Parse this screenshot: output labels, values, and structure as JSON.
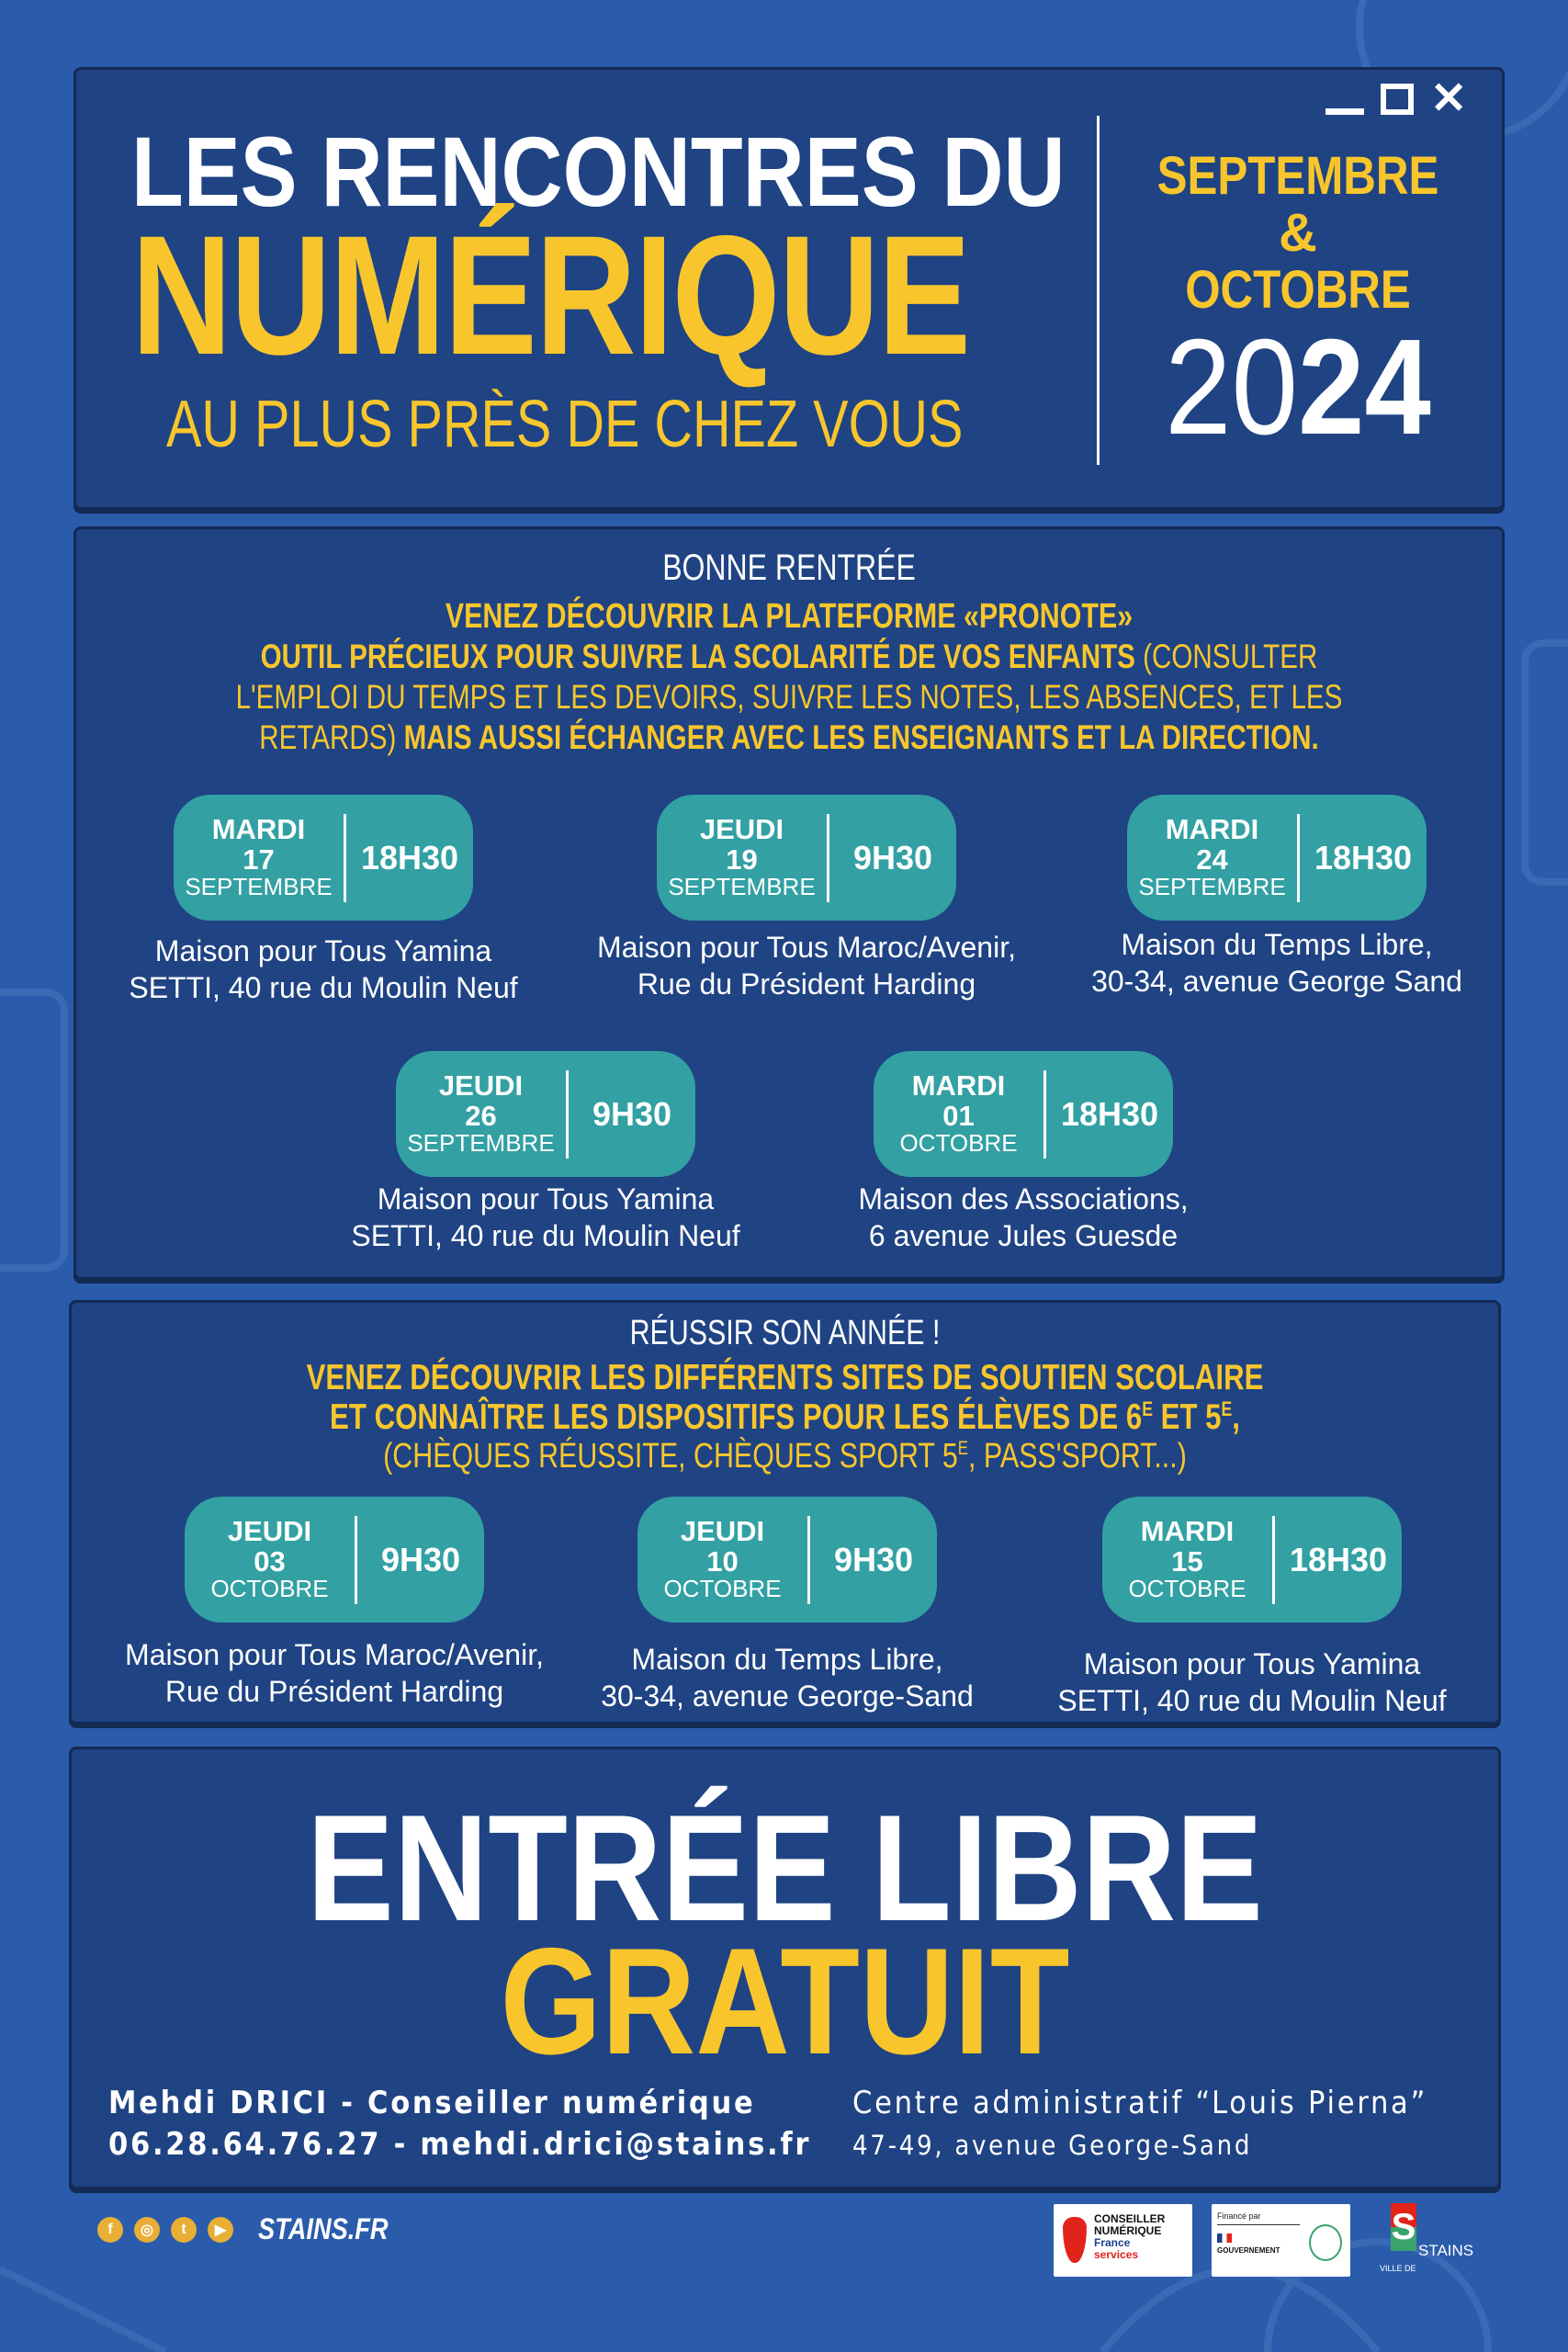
{
  "colors": {
    "background": "#2a5cab",
    "panel": "#1f4383",
    "accent_yellow": "#f8c62c",
    "pill_teal": "#33a0a3"
  },
  "header": {
    "line1": "LES RENCONTRES DU",
    "line2": "NUMÉRIQUE",
    "line3": "AU PLUS PRÈS DE CHEZ VOUS",
    "month1": "SEPTEMBRE",
    "amp": "&",
    "month2": "OCTOBRE",
    "year_a": "20",
    "year_b": "24",
    "window_controls": [
      "minimize-icon",
      "maximize-icon",
      "close-icon"
    ]
  },
  "section1": {
    "kicker": "BONNE RENTRÉE",
    "title": "VENEZ DÉCOUVRIR LA PLATEFORME «PRONOTE»",
    "l2_bold": "OUTIL PRÉCIEUX POUR SUIVRE LA SCOLARITÉ DE VOS ENFANTS",
    "l2_light": " (CONSULTER",
    "l3": "L'EMPLOI DU TEMPS ET LES DEVOIRS, SUIVRE LES NOTES, LES ABSENCES, ET LES",
    "l4_light": "RETARDS) ",
    "l4_bold": "MAIS AUSSI ÉCHANGER AVEC LES ENSEIGNANTS ET LA DIRECTION.",
    "sessions": [
      {
        "day": "MARDI",
        "date": "17",
        "month": "SEPTEMBRE",
        "time": "18H30",
        "place": [
          "Maison pour Tous Yamina",
          "SETTI, 40 rue du Moulin Neuf"
        ]
      },
      {
        "day": "JEUDI",
        "date": "19",
        "month": "SEPTEMBRE",
        "time": "9H30",
        "place": [
          "Maison pour Tous Maroc/Avenir,",
          "Rue du Président Harding"
        ]
      },
      {
        "day": "MARDI",
        "date": "24",
        "month": "SEPTEMBRE",
        "time": "18H30",
        "place": [
          "Maison du Temps Libre,",
          "30-34, avenue George Sand"
        ]
      },
      {
        "day": "JEUDI",
        "date": "26",
        "month": "SEPTEMBRE",
        "time": "9H30",
        "place": [
          "Maison pour Tous Yamina",
          "SETTI, 40 rue du Moulin Neuf"
        ]
      },
      {
        "day": "MARDI",
        "date": "01",
        "month": "OCTOBRE",
        "time": "18H30",
        "place": [
          "Maison des Associations,",
          "6 avenue Jules Guesde"
        ]
      }
    ]
  },
  "section2": {
    "kicker": "RÉUSSIR SON ANNÉE !",
    "l1": "VENEZ DÉCOUVRIR LES DIFFÉRENTS SITES DE SOUTIEN SCOLAIRE",
    "l2a": "ET CONNAÎTRE LES DISPOSITIFS POUR LES ÉLÈVES DE 6",
    "sup1": "E",
    "l2b": " ET 5",
    "sup2": "E",
    "l2c": ",",
    "l3a": "(CHÈQUES RÉUSSITE, CHÈQUES SPORT 5",
    "sup3": "E",
    "l3b": ", PASS'SPORT...)",
    "sessions": [
      {
        "day": "JEUDI",
        "date": "03",
        "month": "OCTOBRE",
        "time": "9H30",
        "place": [
          "Maison pour Tous Maroc/Avenir,",
          "Rue du Président Harding"
        ]
      },
      {
        "day": "JEUDI",
        "date": "10",
        "month": "OCTOBRE",
        "time": "9H30",
        "place": [
          "Maison du Temps Libre,",
          "30-34, avenue George-Sand"
        ]
      },
      {
        "day": "MARDI",
        "date": "15",
        "month": "OCTOBRE",
        "time": "18H30",
        "place": [
          "Maison pour Tous Yamina",
          "SETTI, 40 rue du Moulin Neuf"
        ]
      }
    ]
  },
  "section3": {
    "entry": "ENTRÉE LIBRE",
    "free": "GRATUIT",
    "contact_name": "Mehdi DRICI - Conseiller numérique",
    "contact_info": "06.28.64.76.27 - mehdi.drici@stains.fr",
    "venue": "Centre administratif “Louis Pierna”",
    "venue_address": "47-49, avenue George-Sand"
  },
  "footer": {
    "social": [
      "facebook-icon",
      "instagram-icon",
      "twitter-icon",
      "youtube-icon"
    ],
    "site": "STAINS.FR",
    "logo1": [
      "CONSEILLER",
      "NUMÉRIQUE",
      "France",
      "services"
    ],
    "logo2": {
      "financed": "Financé par",
      "gov": "GOUVERNEMENT"
    },
    "logo3": {
      "ville": "VILLE DE",
      "name": "STAINS"
    }
  }
}
